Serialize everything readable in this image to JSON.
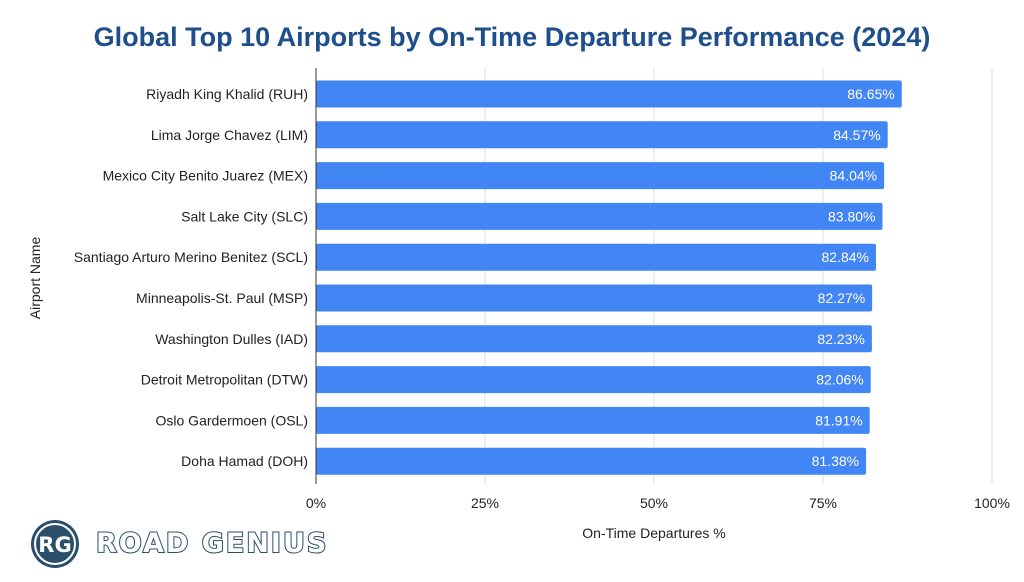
{
  "chart_data": {
    "type": "bar",
    "orientation": "horizontal",
    "title": "Global Top 10 Airports by On-Time Departure Performance (2024)",
    "xlabel": "On-Time Departures %",
    "ylabel": "Airport Name",
    "categories": [
      "Riyadh King Khalid (RUH)",
      "Lima Jorge Chavez (LIM)",
      "Mexico City Benito Juarez (MEX)",
      "Salt Lake City (SLC)",
      "Santiago Arturo Merino Benitez (SCL)",
      "Minneapolis-St. Paul (MSP)",
      "Washington Dulles (IAD)",
      "Detroit Metropolitan (DTW)",
      "Oslo Gardermoen (OSL)",
      "Doha Hamad (DOH)"
    ],
    "values": [
      86.65,
      84.57,
      84.04,
      83.8,
      82.84,
      82.27,
      82.23,
      82.06,
      81.91,
      81.38
    ],
    "value_labels": [
      "86.65%",
      "84.57%",
      "84.04%",
      "83.80%",
      "82.84%",
      "82.27%",
      "82.23%",
      "82.06%",
      "81.91%",
      "81.38%"
    ],
    "xlim": [
      0,
      100
    ],
    "xticks": [
      0,
      25,
      50,
      75,
      100
    ],
    "xtick_labels": [
      "0%",
      "25%",
      "50%",
      "75%",
      "100%"
    ],
    "grid": true,
    "bar_color": "#4285f4"
  },
  "brand": {
    "logo_initials": "RG",
    "name": "ROAD GENIUS"
  },
  "colors": {
    "title": "#1f4e8c",
    "grid": "#dddddd",
    "logo_dark": "#2a4f6a"
  }
}
